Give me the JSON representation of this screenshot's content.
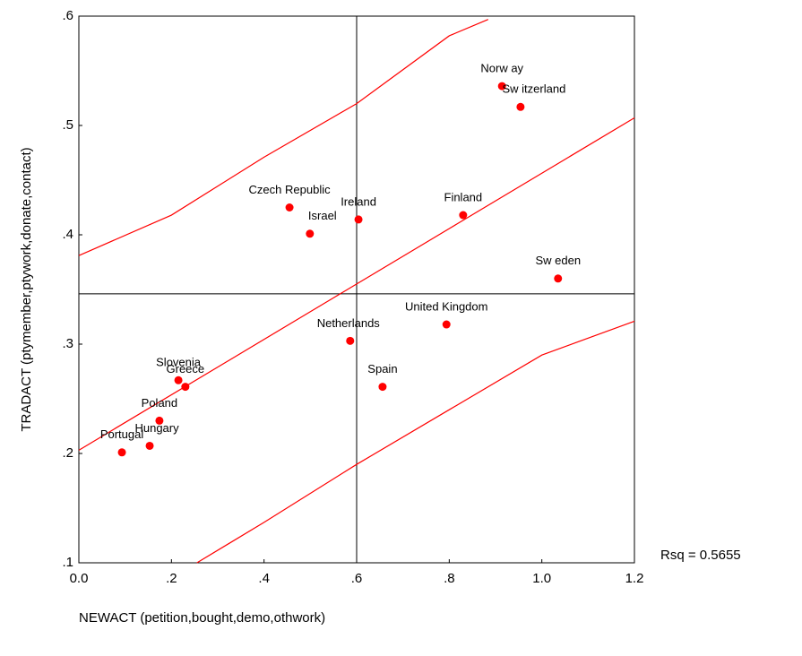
{
  "chart_data": {
    "type": "scatter",
    "x_label": "NEWACT (petition,bought,demo,othwork)",
    "y_label": "TRADACT (ptymember,ptywork,donate,contact)",
    "annotation": "Rsq = 0.5655",
    "color": "#ff0000",
    "line_color": "#ff0000",
    "labels": [
      "Norw ay",
      "Sw itzerland",
      "Finland",
      "Sw eden",
      "Ireland",
      "Czech Republic",
      "Israel",
      "United Kingdom",
      "Netherlands",
      "Spain",
      "Slovenia",
      "Greece",
      "Poland",
      "Hungary",
      "Portugal"
    ],
    "x": [
      0.914,
      0.954,
      0.83,
      1.035,
      0.604,
      0.455,
      0.499,
      0.794,
      0.586,
      0.656,
      0.215,
      0.23,
      0.174,
      0.153,
      0.093
    ],
    "values": [
      0.536,
      0.517,
      0.418,
      0.36,
      0.414,
      0.425,
      0.401,
      0.318,
      0.303,
      0.261,
      0.267,
      0.261,
      0.23,
      0.207,
      0.201
    ],
    "fit_line": {
      "x": [
        0,
        1.2
      ],
      "y": [
        0.203,
        0.507
      ]
    },
    "upper_band": {
      "x": [
        0,
        0.2,
        0.4,
        0.6,
        0.8,
        0.884
      ],
      "y": [
        0.381,
        0.418,
        0.471,
        0.52,
        0.582,
        0.597
      ]
    },
    "lower_band": {
      "x": [
        0.255,
        0.4,
        0.6,
        0.8,
        1.0,
        1.2
      ],
      "y": [
        0.1,
        0.137,
        0.19,
        0.24,
        0.29,
        0.321
      ]
    },
    "reference_lines": {
      "x": 0.6,
      "y": 0.346
    },
    "xlim": [
      0,
      1.2
    ],
    "ylim": [
      0.1,
      0.6
    ],
    "xticks": [
      {
        "value": 0,
        "label": "0.0"
      },
      {
        "value": 0.2,
        "label": ".2"
      },
      {
        "value": 0.4,
        "label": ".4"
      },
      {
        "value": 0.6,
        "label": ".6"
      },
      {
        "value": 0.8,
        "label": ".8"
      },
      {
        "value": 1.0,
        "label": "1.0"
      },
      {
        "value": 1.2,
        "label": "1.2"
      }
    ],
    "yticks": [
      {
        "value": 0.1,
        "label": ".1"
      },
      {
        "value": 0.2,
        "label": ".2"
      },
      {
        "value": 0.3,
        "label": ".3"
      },
      {
        "value": 0.4,
        "label": ".4"
      },
      {
        "value": 0.5,
        "label": ".5"
      },
      {
        "value": 0.6,
        "label": ".6"
      }
    ]
  }
}
